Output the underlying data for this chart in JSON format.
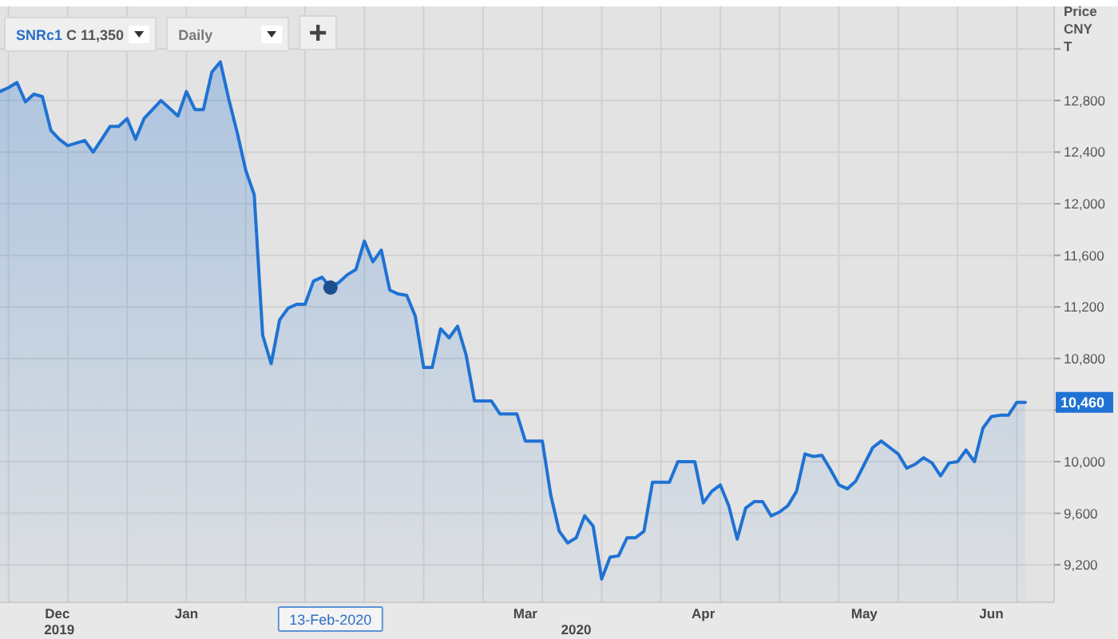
{
  "chart_data": {
    "type": "area",
    "ylabel": "Price CNY T",
    "categories": [
      null,
      null,
      null,
      null,
      null,
      null,
      null,
      "Dec\n2019",
      null,
      null,
      null,
      null,
      null,
      null,
      null,
      null,
      null,
      null,
      null,
      null,
      null,
      null,
      "Jan",
      null,
      null,
      null,
      null,
      null,
      null,
      null,
      null,
      null,
      null,
      null,
      null,
      null,
      null,
      null,
      null,
      "13-Feb-2020",
      null,
      null,
      null,
      null,
      null,
      null,
      null,
      null,
      null,
      null,
      null,
      null,
      null,
      null,
      null,
      null,
      null,
      null,
      null,
      null,
      null,
      null,
      "Mar",
      null,
      null,
      null,
      null,
      null,
      "\n2020",
      null,
      null,
      null,
      null,
      null,
      null,
      null,
      null,
      null,
      null,
      null,
      null,
      null,
      null,
      "Apr",
      null,
      null,
      null,
      null,
      null,
      null,
      null,
      null,
      null,
      null,
      null,
      null,
      null,
      null,
      null,
      null,
      null,
      null,
      "May",
      null,
      null,
      null,
      null,
      null,
      null,
      null,
      null,
      null,
      null,
      null,
      null,
      null,
      null,
      "Jun",
      null,
      null,
      null,
      null
    ],
    "series": [
      {
        "color": "#1f72d3",
        "values": [
          12870,
          12900,
          12940,
          12790,
          12850,
          12830,
          12570,
          12500,
          12450,
          12470,
          12490,
          12400,
          12500,
          12600,
          12600,
          12660,
          12500,
          12660,
          12730,
          12800,
          12740,
          12680,
          12870,
          12730,
          12730,
          13020,
          13100,
          12810,
          12550,
          12260,
          12070,
          10980,
          10760,
          11100,
          11190,
          11220,
          11220,
          11400,
          11430,
          11350,
          11390,
          11450,
          11490,
          11710,
          11550,
          11640,
          11330,
          11300,
          11290,
          11130,
          10730,
          10730,
          11030,
          10960,
          11050,
          10830,
          10470,
          10470,
          10470,
          10370,
          10370,
          10370,
          10160,
          10160,
          10160,
          9740,
          9460,
          9370,
          9410,
          9580,
          9500,
          9090,
          9260,
          9270,
          9410,
          9410,
          9460,
          9840,
          9840,
          9840,
          10000,
          10000,
          10000,
          9680,
          9770,
          9820,
          9660,
          9400,
          9640,
          9690,
          9690,
          9580,
          9610,
          9660,
          9770,
          10060,
          10040,
          10050,
          9940,
          9820,
          9790,
          9850,
          9980,
          10110,
          10160,
          10110,
          10060,
          9950,
          9980,
          10030,
          9990,
          9890,
          9990,
          10000,
          10090,
          10000,
          10260,
          10350,
          10360,
          10360,
          10460,
          10460
        ]
      },
      {
        "type": "scatter",
        "color": "#1b4f8f",
        "marker": "circle",
        "values": [
          null,
          null,
          null,
          null,
          null,
          null,
          null,
          null,
          null,
          null,
          null,
          null,
          null,
          null,
          null,
          null,
          null,
          null,
          null,
          null,
          null,
          null,
          null,
          null,
          null,
          null,
          null,
          null,
          null,
          null,
          null,
          null,
          null,
          null,
          null,
          null,
          null,
          null,
          null,
          11350,
          null,
          null,
          null,
          null,
          null,
          null,
          null,
          null,
          null,
          null,
          null,
          null,
          null,
          null,
          null,
          null,
          null,
          null,
          null,
          null,
          null,
          null,
          null,
          null,
          null,
          null,
          null,
          null,
          null,
          null,
          null,
          null,
          null,
          null,
          null,
          null,
          null,
          null,
          null,
          null,
          null,
          null,
          null,
          null,
          null,
          null,
          null,
          null,
          null,
          null,
          null,
          null,
          null,
          null,
          null,
          null,
          null,
          null,
          null,
          null,
          null,
          null,
          null,
          null,
          null,
          null,
          null,
          null,
          null,
          null,
          null,
          null,
          null,
          null,
          null,
          null,
          null,
          null,
          null,
          null,
          null,
          null
        ]
      }
    ],
    "ylim": [
      8910,
      13530
    ],
    "yticks": [
      {
        "value": 9200,
        "label": "9,200"
      },
      {
        "value": 9600,
        "label": "9,600"
      },
      {
        "value": 10000,
        "label": "10,000"
      },
      {
        "value": 10400,
        "label": null
      },
      {
        "value": 10800,
        "label": "10,800"
      },
      {
        "value": 11200,
        "label": "11,200"
      },
      {
        "value": 11600,
        "label": "11,600"
      },
      {
        "value": 12000,
        "label": "12,000"
      },
      {
        "value": 12400,
        "label": "12,400"
      },
      {
        "value": 12800,
        "label": "12,800"
      },
      {
        "value": 13200,
        "label": null
      }
    ],
    "grid": true,
    "annotations": [
      "SNRc1 C 11,350",
      "Daily",
      "10,460"
    ]
  }
}
